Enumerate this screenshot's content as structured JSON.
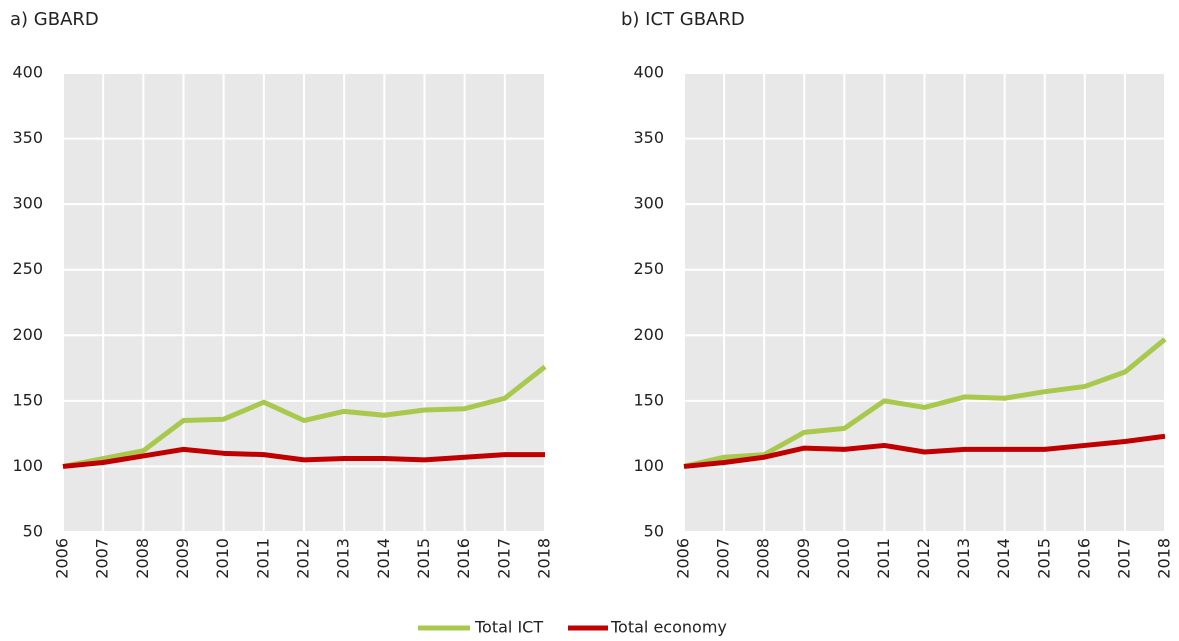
{
  "chart_data": [
    {
      "type": "line",
      "title": "a) GBARD",
      "categories": [
        "2006",
        "2007",
        "2008",
        "2009",
        "2010",
        "2011",
        "2012",
        "2013",
        "2014",
        "2015",
        "2016",
        "2017",
        "2018"
      ],
      "series": [
        {
          "name": "Total ICT",
          "color": "#a9c94e",
          "values": [
            100,
            106,
            112,
            135,
            136,
            149,
            135,
            142,
            139,
            143,
            144,
            152,
            176
          ]
        },
        {
          "name": "Total economy",
          "color": "#c00000",
          "values": [
            100,
            103,
            108,
            113,
            110,
            109,
            105,
            106,
            106,
            105,
            107,
            109,
            109
          ]
        }
      ],
      "ylim": [
        50,
        400
      ],
      "yticks": [
        50,
        100,
        150,
        200,
        250,
        300,
        350,
        400
      ],
      "grid": true
    },
    {
      "type": "line",
      "title": "b) ICT GBARD",
      "categories": [
        "2006",
        "2007",
        "2008",
        "2009",
        "2010",
        "2011",
        "2012",
        "2013",
        "2014",
        "2015",
        "2016",
        "2017",
        "2018"
      ],
      "series": [
        {
          "name": "Total ICT",
          "color": "#a9c94e",
          "values": [
            100,
            107,
            109,
            126,
            129,
            150,
            145,
            153,
            152,
            157,
            161,
            172,
            197
          ]
        },
        {
          "name": "Total economy",
          "color": "#c00000",
          "values": [
            100,
            103,
            107,
            114,
            113,
            116,
            111,
            113,
            113,
            113,
            116,
            119,
            123
          ]
        }
      ],
      "ylim": [
        50,
        400
      ],
      "yticks": [
        50,
        100,
        150,
        200,
        250,
        300,
        350,
        400
      ],
      "grid": true
    }
  ]
}
